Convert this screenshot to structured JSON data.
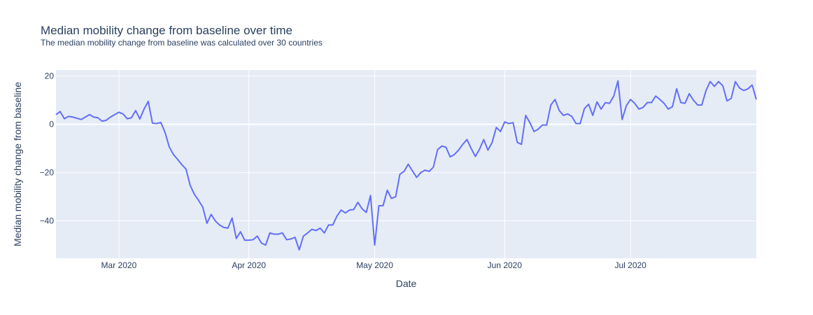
{
  "chart_data": {
    "type": "line",
    "title": "Median mobility change from baseline over time",
    "subtitle": "The median mobility change from baseline was calculated over 30 countries",
    "xlabel": "Date",
    "ylabel": "Median mobility change from baseline",
    "x_range": [
      "2020-02-15",
      "2020-07-31"
    ],
    "ylim": [
      -55.5,
      22.5
    ],
    "y_ticks": [
      20,
      0,
      -20,
      -40
    ],
    "y_tick_labels": [
      "20",
      "0",
      "−20",
      "−40"
    ],
    "x_ticks": [
      "2020-03-01",
      "2020-04-01",
      "2020-05-01",
      "2020-06-01",
      "2020-07-01"
    ],
    "x_tick_labels": [
      "Mar 2020",
      "Apr 2020",
      "May 2020",
      "Jun 2020",
      "Jul 2020"
    ],
    "grid": true,
    "plot_background": "#e5ecf6",
    "line_color": "#636efa",
    "series": [
      {
        "x": [
          "2020-02-15",
          "2020-02-16",
          "2020-02-17",
          "2020-02-18",
          "2020-02-19",
          "2020-02-20",
          "2020-02-21",
          "2020-02-22",
          "2020-02-23",
          "2020-02-24",
          "2020-02-25",
          "2020-02-26",
          "2020-02-27",
          "2020-02-28",
          "2020-02-29",
          "2020-03-01",
          "2020-03-02",
          "2020-03-03",
          "2020-03-04",
          "2020-03-05",
          "2020-03-06",
          "2020-03-07",
          "2020-03-08",
          "2020-03-09",
          "2020-03-10",
          "2020-03-11",
          "2020-03-12",
          "2020-03-13",
          "2020-03-14",
          "2020-03-15",
          "2020-03-16",
          "2020-03-17",
          "2020-03-18",
          "2020-03-19",
          "2020-03-20",
          "2020-03-21",
          "2020-03-22",
          "2020-03-23",
          "2020-03-24",
          "2020-03-25",
          "2020-03-26",
          "2020-03-27",
          "2020-03-28",
          "2020-03-29",
          "2020-03-30",
          "2020-03-31",
          "2020-04-01",
          "2020-04-02",
          "2020-04-03",
          "2020-04-04",
          "2020-04-05",
          "2020-04-06",
          "2020-04-07",
          "2020-04-08",
          "2020-04-09",
          "2020-04-10",
          "2020-04-11",
          "2020-04-12",
          "2020-04-13",
          "2020-04-14",
          "2020-04-15",
          "2020-04-16",
          "2020-04-17",
          "2020-04-18",
          "2020-04-19",
          "2020-04-20",
          "2020-04-21",
          "2020-04-22",
          "2020-04-23",
          "2020-04-24",
          "2020-04-25",
          "2020-04-26",
          "2020-04-27",
          "2020-04-28",
          "2020-04-29",
          "2020-04-30",
          "2020-05-01",
          "2020-05-02",
          "2020-05-03",
          "2020-05-04",
          "2020-05-05",
          "2020-05-06",
          "2020-05-07",
          "2020-05-08",
          "2020-05-09",
          "2020-05-10",
          "2020-05-11",
          "2020-05-12",
          "2020-05-13",
          "2020-05-14",
          "2020-05-15",
          "2020-05-16",
          "2020-05-17",
          "2020-05-18",
          "2020-05-19",
          "2020-05-20",
          "2020-05-21",
          "2020-05-22",
          "2020-05-23",
          "2020-05-24",
          "2020-05-25",
          "2020-05-26",
          "2020-05-27",
          "2020-05-28",
          "2020-05-29",
          "2020-05-30",
          "2020-05-31",
          "2020-06-01",
          "2020-06-02",
          "2020-06-03",
          "2020-06-04",
          "2020-06-05",
          "2020-06-06",
          "2020-06-07",
          "2020-06-08",
          "2020-06-09",
          "2020-06-10",
          "2020-06-11",
          "2020-06-12",
          "2020-06-13",
          "2020-06-14",
          "2020-06-15",
          "2020-06-16",
          "2020-06-17",
          "2020-06-18",
          "2020-06-19",
          "2020-06-20",
          "2020-06-21",
          "2020-06-22",
          "2020-06-23",
          "2020-06-24",
          "2020-06-25",
          "2020-06-26",
          "2020-06-27",
          "2020-06-28",
          "2020-06-29",
          "2020-06-30",
          "2020-07-01",
          "2020-07-02",
          "2020-07-03",
          "2020-07-04",
          "2020-07-05",
          "2020-07-06",
          "2020-07-07",
          "2020-07-08",
          "2020-07-09",
          "2020-07-10",
          "2020-07-11",
          "2020-07-12",
          "2020-07-13",
          "2020-07-14",
          "2020-07-15",
          "2020-07-16",
          "2020-07-17",
          "2020-07-18",
          "2020-07-19",
          "2020-07-20",
          "2020-07-21",
          "2020-07-22",
          "2020-07-23",
          "2020-07-24",
          "2020-07-25",
          "2020-07-26",
          "2020-07-27",
          "2020-07-28",
          "2020-07-29",
          "2020-07-30",
          "2020-07-31"
        ],
        "y": [
          4,
          5.3,
          2.3,
          3.3,
          3,
          2.5,
          2,
          3,
          4,
          3,
          2.7,
          1.3,
          1.7,
          3,
          4,
          5,
          4.3,
          2.3,
          2.7,
          5.7,
          2.2,
          6.3,
          9.5,
          0.5,
          0.3,
          0.8,
          -3.3,
          -9.3,
          -12.5,
          -14.5,
          -16.7,
          -18.5,
          -25.3,
          -29,
          -31.5,
          -34.3,
          -41,
          -37.3,
          -40,
          -41.7,
          -42.7,
          -43,
          -38.8,
          -47.3,
          -44.5,
          -48,
          -48,
          -47.8,
          -46.3,
          -49.2,
          -50,
          -45,
          -45.5,
          -45.5,
          -45,
          -47.8,
          -47.5,
          -46.8,
          -52,
          -46.3,
          -45,
          -43.5,
          -44,
          -43,
          -45,
          -41.7,
          -41.7,
          -38,
          -35.5,
          -36.7,
          -35.5,
          -35.3,
          -32.3,
          -35,
          -36.5,
          -29.5,
          -50,
          -33.7,
          -33.7,
          -27.3,
          -30.7,
          -30,
          -20.7,
          -19.5,
          -16.5,
          -19.3,
          -22,
          -20,
          -19,
          -19.5,
          -17.7,
          -10.5,
          -9,
          -9.5,
          -13.5,
          -12.5,
          -10.7,
          -8.3,
          -6.3,
          -10,
          -13.3,
          -10.3,
          -6.3,
          -10.7,
          -7.5,
          -1.3,
          -3,
          1,
          0.3,
          0.7,
          -7.5,
          -8.3,
          3.7,
          0.7,
          -3,
          -2,
          -0.3,
          -0.3,
          8,
          10.3,
          5.7,
          3.7,
          4.3,
          3.3,
          0.3,
          0.3,
          6.5,
          8.3,
          3.7,
          9.3,
          6.3,
          9,
          8.7,
          11.7,
          18,
          2,
          7.7,
          10.3,
          8.7,
          6.3,
          7,
          9,
          9,
          11.7,
          10.3,
          8.7,
          6.3,
          7.3,
          14.7,
          9,
          8.7,
          12.7,
          10,
          8,
          8,
          14,
          17.7,
          15.7,
          17.7,
          16,
          9.7,
          10.7,
          17.7,
          15,
          14,
          14.7,
          16.3,
          10.3
        ]
      }
    ]
  }
}
